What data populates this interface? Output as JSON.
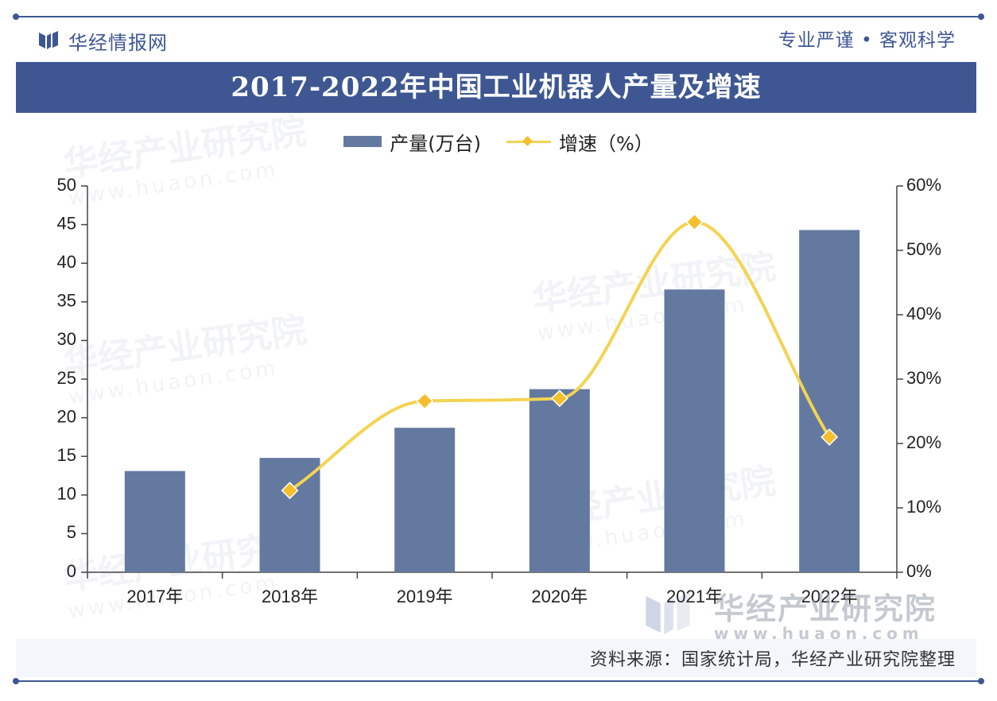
{
  "header": {
    "brand_name": "华经情报网",
    "slogan": "专业严谨 • 客观科学"
  },
  "title": "2017-2022年中国工业机器人产量及增速",
  "legend": {
    "bar_label": "产量(万台)",
    "line_label": "增速（%）"
  },
  "source": "资料来源：国家统计局，华经产业研究院整理",
  "watermark": {
    "name": "华经产业研究院",
    "url": "www.huaon.com"
  },
  "colors": {
    "brand": "#3e5793",
    "bar": "#63799f",
    "line": "#f3d352",
    "marker": "#f3bf2c"
  },
  "chart_data": {
    "type": "bar",
    "categories": [
      "2017年",
      "2018年",
      "2019年",
      "2020年",
      "2021年",
      "2022年"
    ],
    "series": [
      {
        "name": "产量(万台)",
        "type": "bar",
        "axis": "left",
        "values": [
          13.1,
          14.8,
          18.7,
          23.7,
          36.6,
          44.3
        ]
      },
      {
        "name": "增速（%）",
        "type": "line",
        "axis": "right",
        "smooth": true,
        "values": [
          null,
          12.7,
          26.6,
          27.0,
          54.4,
          21.0
        ]
      }
    ],
    "ylim_left": [
      0,
      50
    ],
    "yticks_left": [
      "0",
      "5",
      "10",
      "15",
      "20",
      "25",
      "30",
      "35",
      "40",
      "45",
      "50"
    ],
    "ylim_right": [
      0,
      60
    ],
    "yticks_right": [
      "0%",
      "10%",
      "20%",
      "30%",
      "40%",
      "50%",
      "60%"
    ],
    "legend_position": "top-center",
    "grid": false
  }
}
